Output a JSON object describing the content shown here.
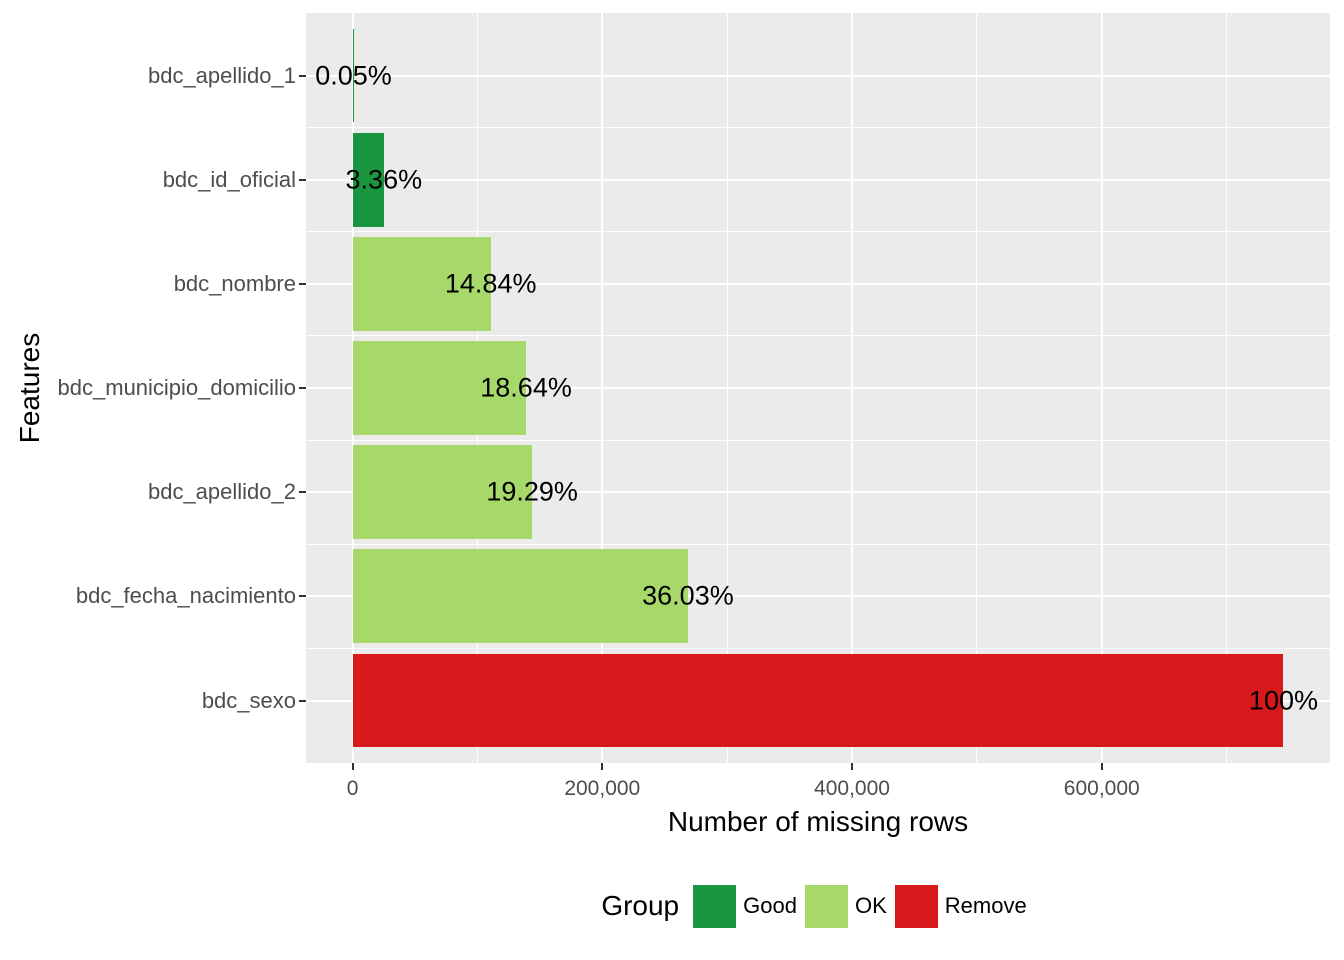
{
  "chart_data": {
    "type": "bar",
    "orientation": "horizontal",
    "title": "",
    "xlabel": "Number of missing rows",
    "ylabel": "Features",
    "categories": [
      "bdc_apellido_1",
      "bdc_id_oficial",
      "bdc_nombre",
      "bdc_municipio_domicilio",
      "bdc_apellido_2",
      "bdc_fecha_nacimiento",
      "bdc_sexo"
    ],
    "values": [
      373,
      25049,
      110632,
      138961,
      143807,
      268604,
      745500
    ],
    "percent_labels": [
      "0.05%",
      "3.36%",
      "14.84%",
      "18.64%",
      "19.29%",
      "36.03%",
      "100%"
    ],
    "groups": [
      "Good",
      "Good",
      "OK",
      "OK",
      "OK",
      "OK",
      "Remove"
    ],
    "xlim": [
      0,
      745500
    ],
    "x_axis": {
      "tick_values": [
        0,
        200000,
        400000,
        600000
      ],
      "tick_labels": [
        "0",
        "200,000",
        "400,000",
        "600,000"
      ],
      "minor_tick_values": [
        100000,
        300000,
        500000,
        700000
      ]
    },
    "grid": "on",
    "legend": {
      "title": "Group",
      "position": "bottom",
      "entries": [
        {
          "label": "Good",
          "color": "#1A9641"
        },
        {
          "label": "OK",
          "color": "#A6D96A"
        },
        {
          "label": "Remove",
          "color": "#D7191C"
        }
      ]
    },
    "group_colors": {
      "Good": "#1A9641",
      "OK": "#A6D96A",
      "Remove": "#D7191C"
    },
    "style": {
      "panel_background": "#EBEBEB",
      "gridline_color": "#FFFFFF",
      "axis_text_color": "#4D4D4D",
      "tick_mark_color": "#333333",
      "title_color": "#000000",
      "bar_label_color": "#000000",
      "figure_background": "#FFFFFF"
    }
  }
}
